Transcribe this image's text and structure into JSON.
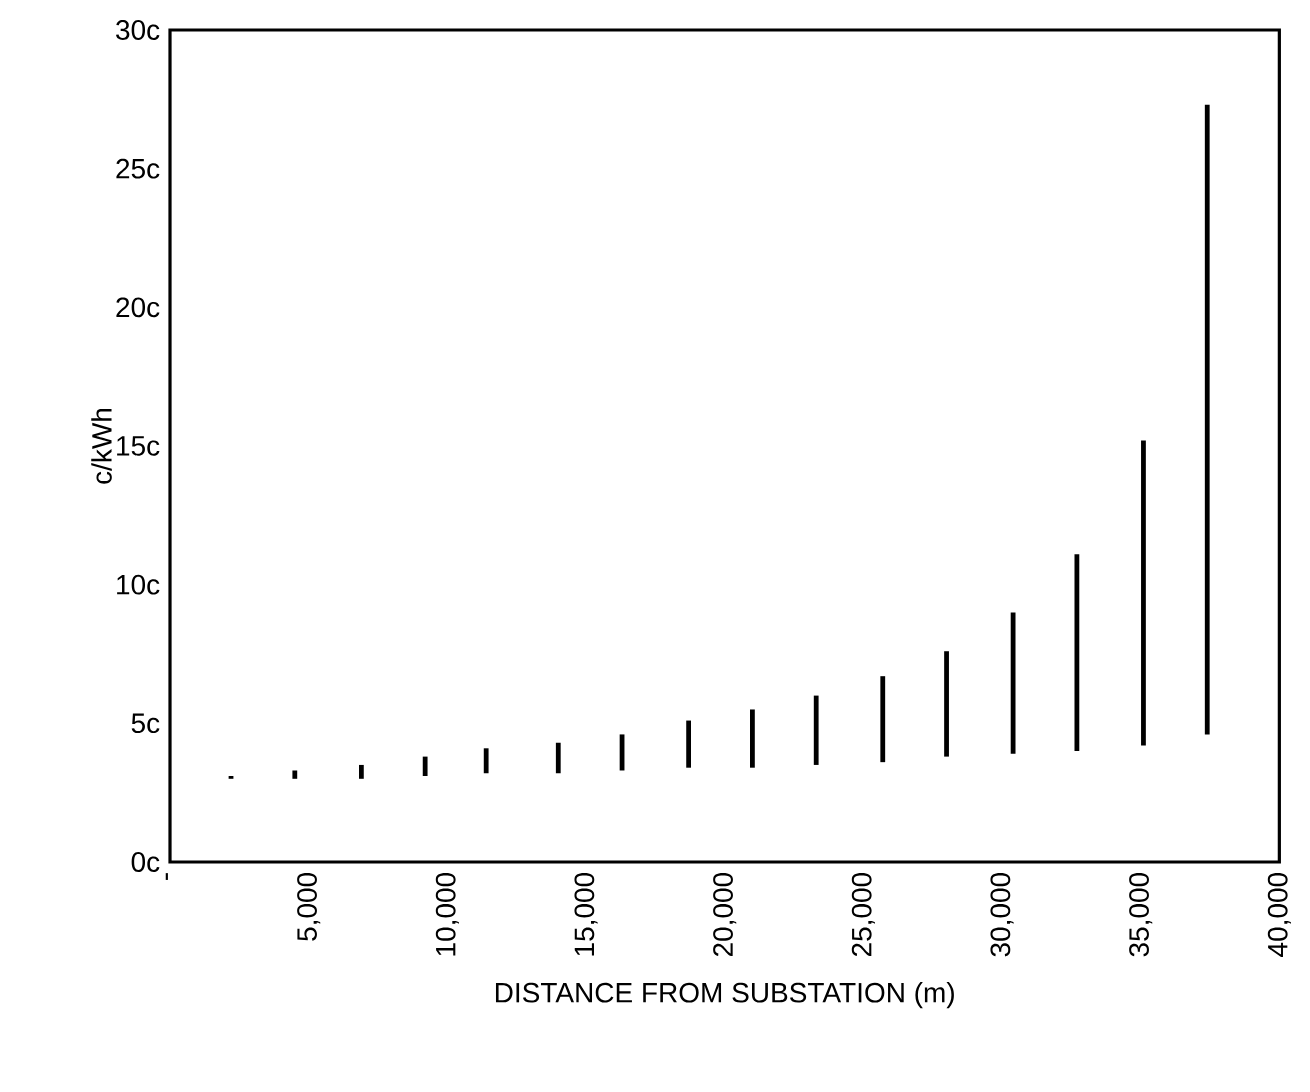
{
  "chart_data": {
    "type": "bar",
    "xlabel": "DISTANCE FROM SUBSTATION (m)",
    "ylabel": "c/kWh",
    "x": [
      2200,
      4500,
      6900,
      9200,
      11400,
      14000,
      16300,
      18700,
      21000,
      23300,
      25700,
      28000,
      30400,
      32700,
      35100,
      37400
    ],
    "base": [
      3.0,
      3.0,
      3.0,
      3.1,
      3.2,
      3.2,
      3.3,
      3.4,
      3.4,
      3.5,
      3.6,
      3.8,
      3.9,
      4.0,
      4.2,
      4.6
    ],
    "values": [
      0.1,
      0.3,
      0.5,
      0.7,
      0.9,
      1.1,
      1.3,
      1.7,
      2.1,
      2.5,
      3.1,
      3.8,
      5.1,
      7.1,
      11.0,
      22.7
    ],
    "color": "#000000",
    "xlim": [
      0,
      40000
    ],
    "xticks": [
      {
        "value": 0,
        "label": "-"
      },
      {
        "value": 5000,
        "label": "5,000"
      },
      {
        "value": 10000,
        "label": "10,000"
      },
      {
        "value": 15000,
        "label": "15,000"
      },
      {
        "value": 20000,
        "label": "20,000"
      },
      {
        "value": 25000,
        "label": "25,000"
      },
      {
        "value": 30000,
        "label": "30,000"
      },
      {
        "value": 35000,
        "label": "35,000"
      },
      {
        "value": 40000,
        "label": "40,000"
      }
    ],
    "ylim": [
      0,
      30
    ],
    "yticks": [
      {
        "value": 0,
        "label": "0c"
      },
      {
        "value": 5,
        "label": "5c"
      },
      {
        "value": 10,
        "label": "10c"
      },
      {
        "value": 15,
        "label": "15c"
      },
      {
        "value": 20,
        "label": "20c"
      },
      {
        "value": 25,
        "label": "25c"
      },
      {
        "value": 30,
        "label": "30c"
      }
    ],
    "grid": false
  }
}
